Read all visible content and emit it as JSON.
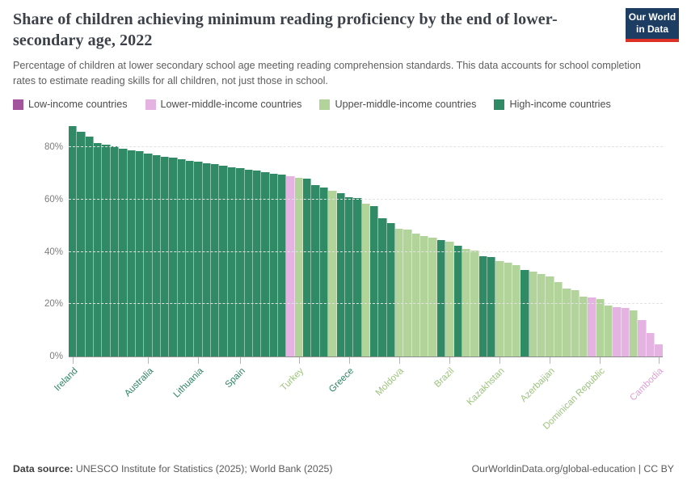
{
  "header": {
    "title": "Share of children achieving minimum reading proficiency by the end of lower-secondary age, 2022",
    "subtitle": "Percentage of children at lower secondary school age meeting reading comprehension standards. This data accounts for school completion rates to estimate reading skills for all children, not just those in school.",
    "logo": {
      "line1": "Our World",
      "line2": "in Data"
    }
  },
  "colors": {
    "low": "#a2559c",
    "lower": "#e5b3e1",
    "upper": "#b2d49b",
    "high": "#2f8a65",
    "label_low": "#a2559c",
    "label_lower": "#de9fd4",
    "label_upper": "#9cc47d",
    "label_high": "#2c8465"
  },
  "legend": [
    {
      "label": "Low-income countries",
      "group": "low"
    },
    {
      "label": "Lower-middle-income countries",
      "group": "lower"
    },
    {
      "label": "Upper-middle-income countries",
      "group": "upper"
    },
    {
      "label": "High-income countries",
      "group": "high"
    }
  ],
  "chart_data": {
    "type": "bar",
    "unit": "%",
    "ylim": [
      0,
      90
    ],
    "grid": true,
    "legend_position": "top",
    "yticks": [
      {
        "label": "0%",
        "value": 0
      },
      {
        "label": "20%",
        "value": 20
      },
      {
        "label": "40%",
        "value": 40
      },
      {
        "label": "60%",
        "value": 60
      },
      {
        "label": "80%",
        "value": 80
      }
    ],
    "bars": [
      {
        "country": "Ireland",
        "value": 88,
        "group": "high"
      },
      {
        "value": 86,
        "group": "high"
      },
      {
        "value": 84,
        "group": "high"
      },
      {
        "value": 81.5,
        "group": "high"
      },
      {
        "value": 81,
        "group": "high"
      },
      {
        "value": 80.5,
        "group": "high"
      },
      {
        "value": 79.5,
        "group": "high"
      },
      {
        "value": 79,
        "group": "high"
      },
      {
        "value": 78.5,
        "group": "high"
      },
      {
        "country": "Australia",
        "value": 77.5,
        "group": "high"
      },
      {
        "value": 77,
        "group": "high"
      },
      {
        "value": 76.5,
        "group": "high"
      },
      {
        "value": 76,
        "group": "high"
      },
      {
        "value": 75.5,
        "group": "high"
      },
      {
        "value": 75,
        "group": "high"
      },
      {
        "country": "Lithuania",
        "value": 74.5,
        "group": "high"
      },
      {
        "value": 74,
        "group": "high"
      },
      {
        "value": 73.5,
        "group": "high"
      },
      {
        "value": 73,
        "group": "high"
      },
      {
        "value": 72.5,
        "group": "high"
      },
      {
        "country": "Spain",
        "value": 72,
        "group": "high"
      },
      {
        "value": 71.5,
        "group": "high"
      },
      {
        "value": 71,
        "group": "high"
      },
      {
        "value": 70.5,
        "group": "high"
      },
      {
        "value": 70,
        "group": "high"
      },
      {
        "value": 69.5,
        "group": "high"
      },
      {
        "value": 69,
        "group": "lower"
      },
      {
        "country": "Turkey",
        "value": 68.5,
        "group": "upper"
      },
      {
        "value": 68,
        "group": "high"
      },
      {
        "value": 65.5,
        "group": "high"
      },
      {
        "value": 64.5,
        "group": "high"
      },
      {
        "value": 63.5,
        "group": "upper"
      },
      {
        "value": 62.5,
        "group": "high"
      },
      {
        "country": "Greece",
        "value": 61,
        "group": "high"
      },
      {
        "value": 60.5,
        "group": "high"
      },
      {
        "value": 58.5,
        "group": "upper"
      },
      {
        "value": 57.5,
        "group": "high"
      },
      {
        "value": 53,
        "group": "high"
      },
      {
        "value": 51,
        "group": "high"
      },
      {
        "country": "Moldova",
        "value": 49,
        "group": "upper"
      },
      {
        "value": 48.5,
        "group": "upper"
      },
      {
        "value": 47,
        "group": "upper"
      },
      {
        "value": 46,
        "group": "upper"
      },
      {
        "value": 45.5,
        "group": "upper"
      },
      {
        "value": 44.5,
        "group": "high"
      },
      {
        "country": "Brazil",
        "value": 44,
        "group": "upper"
      },
      {
        "value": 42.5,
        "group": "high"
      },
      {
        "value": 41,
        "group": "upper"
      },
      {
        "value": 40.5,
        "group": "upper"
      },
      {
        "value": 38.5,
        "group": "high"
      },
      {
        "value": 38,
        "group": "high"
      },
      {
        "country": "Kazakhstan",
        "value": 36.5,
        "group": "upper"
      },
      {
        "value": 36,
        "group": "upper"
      },
      {
        "value": 35,
        "group": "upper"
      },
      {
        "value": 33,
        "group": "high"
      },
      {
        "value": 32.5,
        "group": "upper"
      },
      {
        "value": 31.5,
        "group": "upper"
      },
      {
        "country": "Azerbaijan",
        "value": 30.5,
        "group": "upper"
      },
      {
        "value": 28.5,
        "group": "upper"
      },
      {
        "value": 26,
        "group": "upper"
      },
      {
        "value": 25.5,
        "group": "upper"
      },
      {
        "value": 23,
        "group": "upper"
      },
      {
        "value": 22.5,
        "group": "lower"
      },
      {
        "country": "Dominican Republic",
        "value": 22,
        "group": "upper"
      },
      {
        "value": 19.5,
        "group": "upper"
      },
      {
        "value": 19,
        "group": "lower"
      },
      {
        "value": 18.7,
        "group": "lower"
      },
      {
        "value": 17.5,
        "group": "upper"
      },
      {
        "value": 14,
        "group": "lower"
      },
      {
        "value": 9,
        "group": "lower"
      },
      {
        "country": "Cambodia",
        "value": 4.5,
        "group": "lower"
      }
    ]
  },
  "footer": {
    "source_label": "Data source:",
    "source": "UNESCO Institute for Statistics (2025); World Bank (2025)",
    "credit": "OurWorldinData.org/global-education | CC BY"
  }
}
